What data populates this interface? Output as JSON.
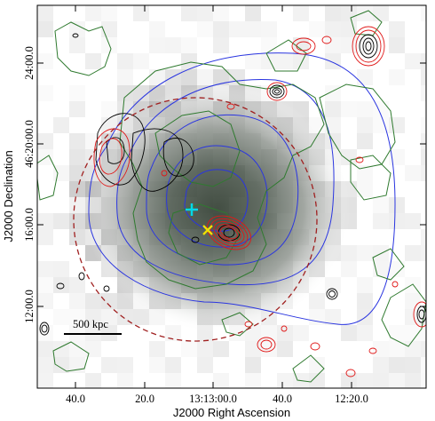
{
  "figure": {
    "x_axis_title": "J2000 Right Ascension",
    "y_axis_title": "J2000 Declination",
    "x_tick_labels": [
      "40.0",
      "20.0",
      "13:13:00.0",
      "40.0",
      "12:20.0"
    ],
    "y_tick_labels": [
      "24:00.0",
      "46:20:00.0",
      "16:00.0",
      "12:00.0"
    ],
    "scale_bar_label": "500 kpc",
    "markers": [
      {
        "name": "cyan-cross-marker",
        "symbol": "plus",
        "color": "#00d8e8"
      },
      {
        "name": "yellow-x-marker",
        "symbol": "x",
        "color": "#f0e000"
      }
    ],
    "contour_colors": {
      "green": "#2f7a2f",
      "blue": "#2a35e0",
      "red": "#e01818",
      "black": "#000000",
      "dashed_circle": "#a02020"
    }
  }
}
